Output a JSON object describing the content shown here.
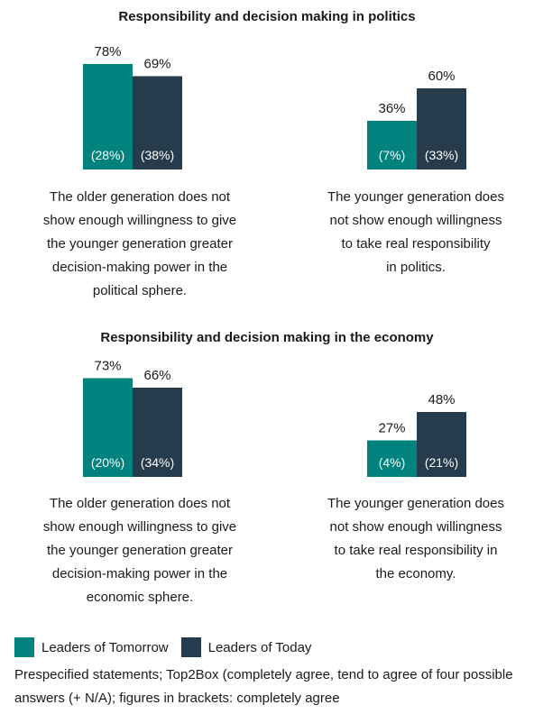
{
  "colors": {
    "tomorrow": "#00827f",
    "today": "#263b4b"
  },
  "legend": {
    "tomorrow_label": "Leaders of Tomorrow",
    "today_label": "Leaders of Today"
  },
  "note": "Prespecified statements; Top2Box (completely agree, tend to agree of four possible answers (+ N/A); figures in brackets: completely agree",
  "chart_data": [
    {
      "type": "bar",
      "title": "Responsibility and decision making in politics",
      "ylim": [
        0,
        100
      ],
      "groups": [
        {
          "caption": "The older generation does not show enough willingness to give the younger generation greater decision-making power in the political sphere.",
          "caption_lines": [
            "The older generation does not",
            "show enough willingness to give",
            "the younger generation greater",
            "decision-making power in the",
            "political sphere."
          ],
          "series": [
            {
              "series_key": "tomorrow",
              "value": 78,
              "label": "78%",
              "completely_agree": 28,
              "inner_label": "(28%)"
            },
            {
              "series_key": "today",
              "value": 69,
              "label": "69%",
              "completely_agree": 38,
              "inner_label": "(38%)"
            }
          ]
        },
        {
          "caption": "The younger generation does not show enough willingness to take real responsibility in politics.",
          "caption_lines": [
            "The younger generation does",
            "not show enough willingness",
            "to take real responsibility",
            "in politics."
          ],
          "series": [
            {
              "series_key": "tomorrow",
              "value": 36,
              "label": "36%",
              "completely_agree": 7,
              "inner_label": "(7%)"
            },
            {
              "series_key": "today",
              "value": 60,
              "label": "60%",
              "completely_agree": 33,
              "inner_label": "(33%)"
            }
          ]
        }
      ]
    },
    {
      "type": "bar",
      "title": "Responsibility and decision making in the economy",
      "ylim": [
        0,
        100
      ],
      "groups": [
        {
          "caption": "The older generation does not show enough willingness to give the younger generation greater decision-making power in the economic sphere.",
          "caption_lines": [
            "The older generation does not",
            "show enough willingness to give",
            "the younger generation greater",
            "decision-making power in the",
            "economic sphere."
          ],
          "series": [
            {
              "series_key": "tomorrow",
              "value": 73,
              "label": "73%",
              "completely_agree": 20,
              "inner_label": "(20%)"
            },
            {
              "series_key": "today",
              "value": 66,
              "label": "66%",
              "completely_agree": 34,
              "inner_label": "(34%)"
            }
          ]
        },
        {
          "caption": "The younger generation does not show enough willingness to take real responsibility in the economy.",
          "caption_lines": [
            "The younger generation does",
            "not show enough willingness",
            "to take real responsibility in",
            "the economy."
          ],
          "series": [
            {
              "series_key": "tomorrow",
              "value": 27,
              "label": "27%",
              "completely_agree": 4,
              "inner_label": "(4%)"
            },
            {
              "series_key": "today",
              "value": 48,
              "label": "48%",
              "completely_agree": 21,
              "inner_label": "(21%)"
            }
          ]
        }
      ]
    }
  ]
}
